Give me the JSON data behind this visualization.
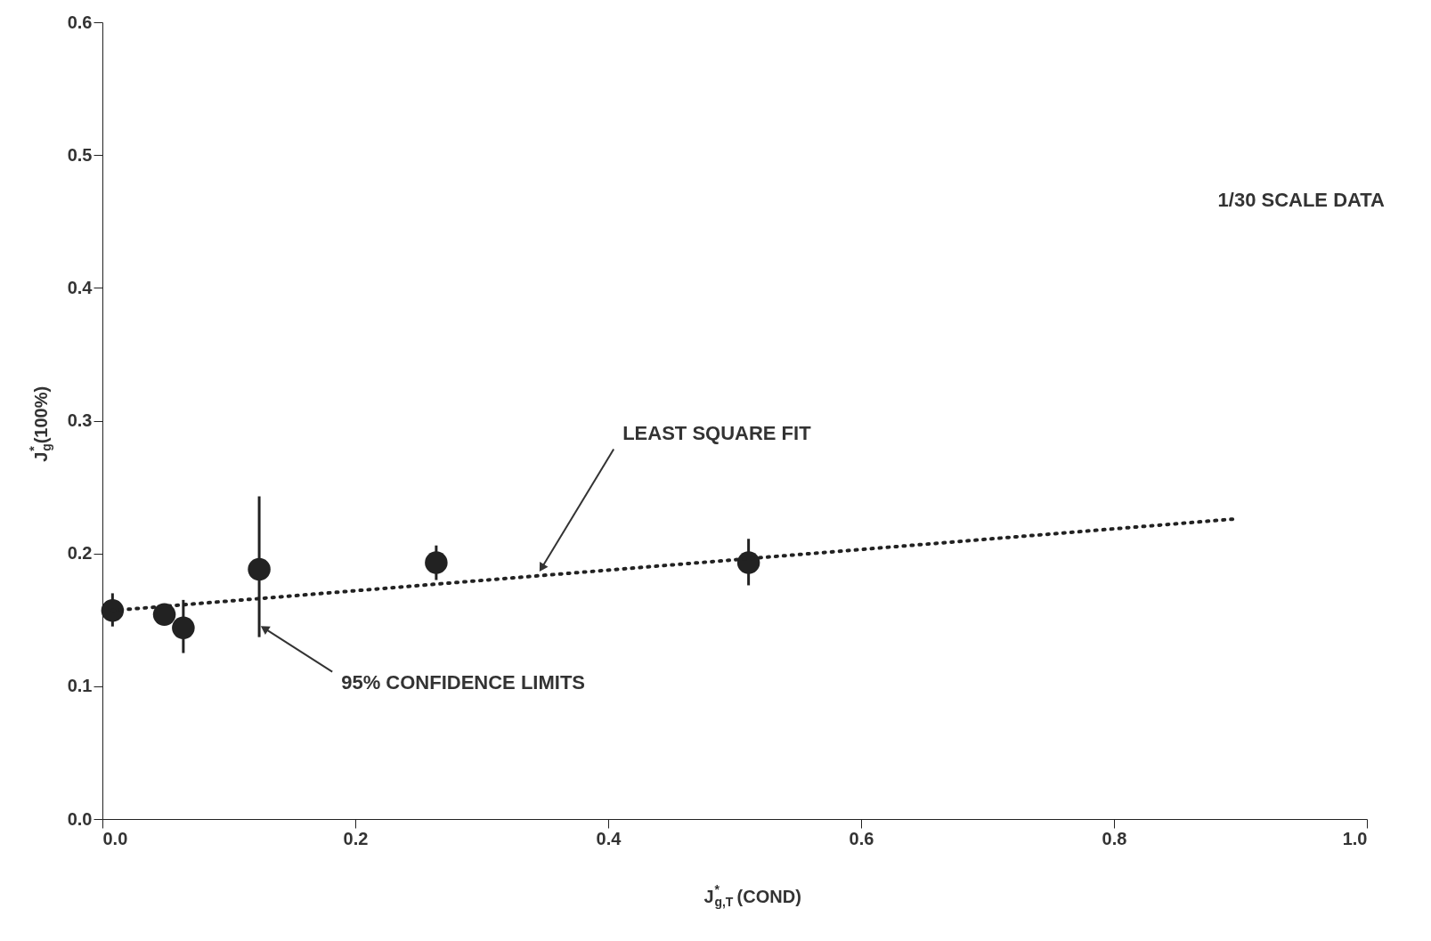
{
  "chart_data": {
    "type": "scatter",
    "xlabel": "J$^{*}$$_{g,T}$(COND)",
    "ylabel": "J$^{*}$$_{g}$(100%)",
    "xlim": [
      0.0,
      1.0
    ],
    "xticks": [
      {
        "value": 0,
        "label": "0.0"
      },
      0.2,
      0.4,
      0.6,
      0.8,
      {
        "value": 1,
        "label": "1.0"
      }
    ],
    "ylim": [
      0.0,
      0.6
    ],
    "yticks": [
      {
        "value": 0,
        "label": "0.0"
      },
      0.1,
      0.2,
      0.3,
      0.4,
      0.5,
      0.6
    ],
    "grid": false,
    "series": [
      {
        "color": "#222222",
        "marker": "circle",
        "x": [
          0.008,
          0.049,
          0.064,
          0.124,
          0.264,
          0.511
        ],
        "values": [
          0.157,
          0.154,
          0.144,
          0.188,
          0.193,
          0.193
        ],
        "errors": [
          [
            0.145,
            0.17
          ],
          null,
          [
            0.125,
            0.165
          ],
          [
            0.137,
            0.243
          ],
          [
            0.18,
            0.206
          ],
          [
            0.176,
            0.211
          ]
        ]
      },
      {
        "type": "line",
        "color": "#222222",
        "line_style": "dotted",
        "x": [
          0.008,
          0.896
        ],
        "values": [
          0.157,
          0.226
        ]
      }
    ],
    "annotations": [
      {
        "text": "LEAST SQUARE FIT",
        "x": 0.348,
        "y": 0.19
      },
      {
        "text": "95% CONFIDENCE LIMITS",
        "x": 0.129,
        "y": 0.143
      },
      "1/30 SCALE DATA"
    ]
  }
}
